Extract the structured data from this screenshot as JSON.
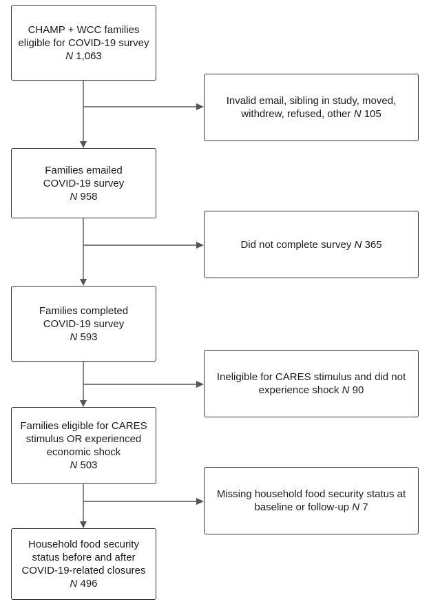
{
  "main_boxes": [
    {
      "text": "CHAMP + WCC families eligible for COVID-19 survey",
      "n_label": "N",
      "n_value": "1,063"
    },
    {
      "text": "Families emailed COVID-19 survey",
      "n_label": "N",
      "n_value": "958"
    },
    {
      "text": "Families completed COVID-19 survey",
      "n_label": "N",
      "n_value": "593"
    },
    {
      "text": "Families eligible for CARES stimulus OR experienced economic shock",
      "n_label": "N",
      "n_value": "503"
    },
    {
      "text": "Household food security status before and after COVID-19-related closures",
      "n_label": "N",
      "n_value": "496"
    }
  ],
  "exclusion_boxes": [
    {
      "text": "Invalid email, sibling in study, moved, withdrew, refused, other",
      "n_label": "N",
      "n_value": "105"
    },
    {
      "text": "Did not complete survey",
      "n_label": "N",
      "n_value": "365"
    },
    {
      "text": "Ineligible for CARES stimulus and did not experience shock",
      "n_label": "N",
      "n_value": "90"
    },
    {
      "text": "Missing household food security status at baseline or follow-up",
      "n_label": "N",
      "n_value": "7"
    }
  ],
  "colors": {
    "border": "#333333",
    "arrow": "#555555",
    "text": "#1a1a1a"
  }
}
